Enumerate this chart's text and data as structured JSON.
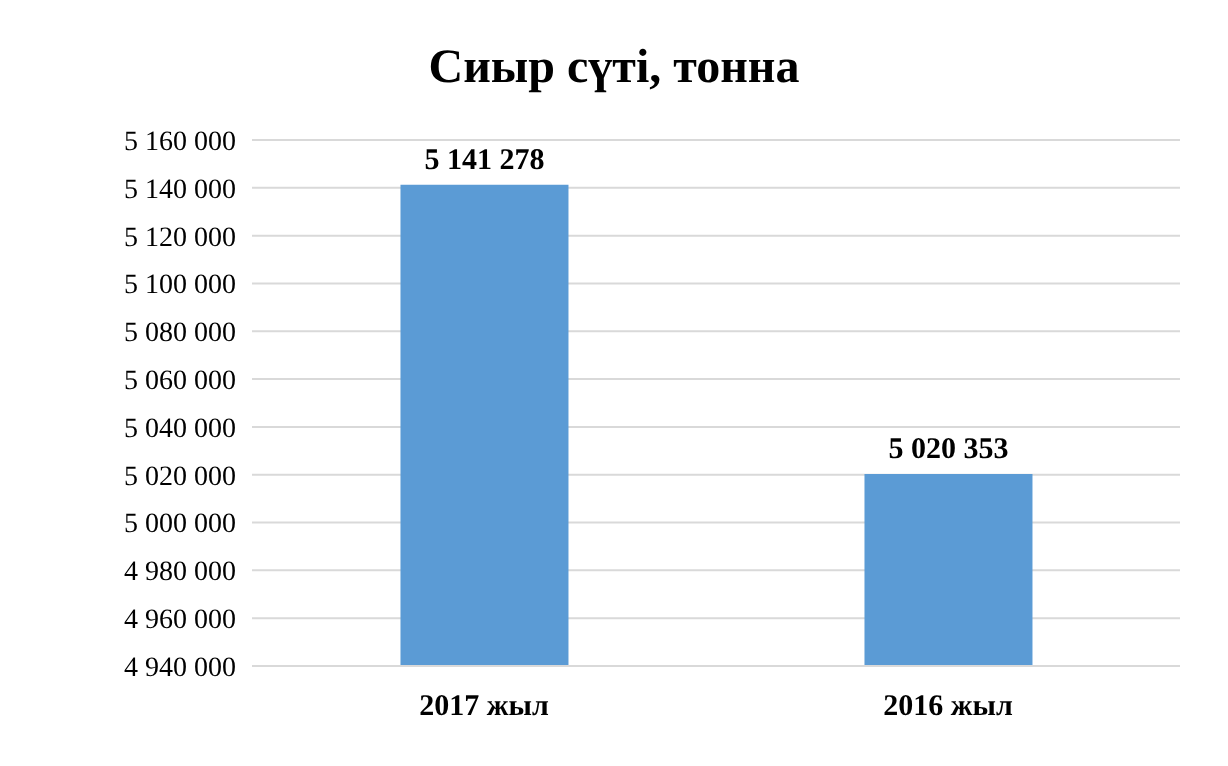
{
  "chart_data": {
    "type": "bar",
    "title": "Сиыр сүті, тонна",
    "categories": [
      "2017 жыл",
      "2016 жыл"
    ],
    "series": [
      {
        "color": "#5b9bd5",
        "values": [
          5141278,
          5020353
        ],
        "value_labels": [
          "5 141 278",
          "5 020 353"
        ]
      }
    ],
    "ylim": [
      4940000,
      5160000
    ],
    "yticks": [
      {
        "value": 4940000,
        "label": "4 940 000"
      },
      {
        "value": 4960000,
        "label": "4 960 000"
      },
      {
        "value": 4980000,
        "label": "4 980 000"
      },
      {
        "value": 5000000,
        "label": "5 000 000"
      },
      {
        "value": 5020000,
        "label": "5 020 000"
      },
      {
        "value": 5040000,
        "label": "5 040 000"
      },
      {
        "value": 5060000,
        "label": "5 060 000"
      },
      {
        "value": 5080000,
        "label": "5 080 000"
      },
      {
        "value": 5100000,
        "label": "5 100 000"
      },
      {
        "value": 5120000,
        "label": "5 120 000"
      },
      {
        "value": 5140000,
        "label": "5 140 000"
      },
      {
        "value": 5160000,
        "label": "5 160 000"
      }
    ],
    "grid": "y",
    "legend": false
  }
}
